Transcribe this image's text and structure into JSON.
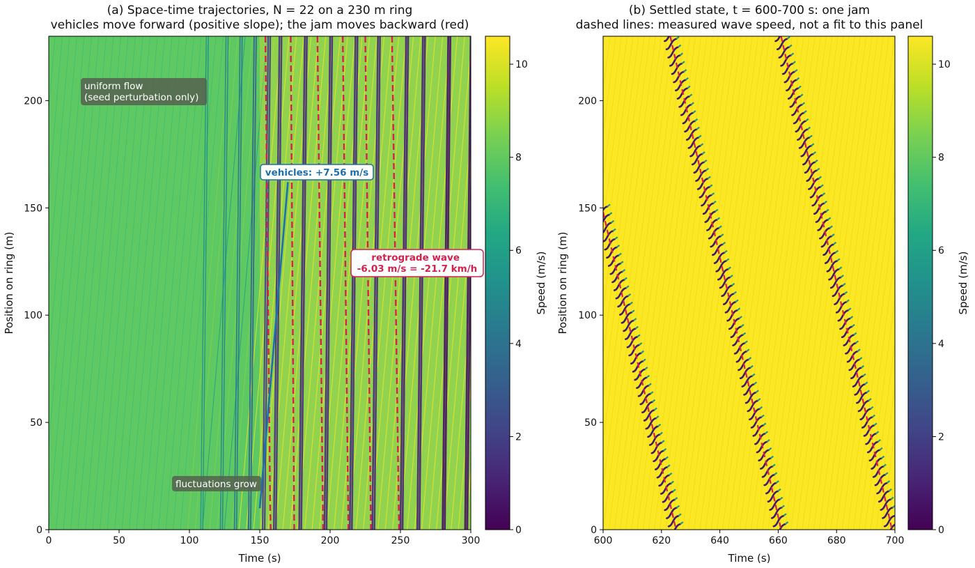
{
  "chart_data": [
    {
      "type": "scatter",
      "panel_title": "(a) Space-time trajectories, N = 22 on a 230 m ring",
      "panel_subtitle": "vehicles move forward (positive slope); the jam moves backward (red)",
      "xlabel": "Time (s)",
      "ylabel": "Position on ring (m)",
      "xlim": [
        0,
        300
      ],
      "ylim": [
        0,
        230
      ],
      "xticks": [
        "0",
        "50",
        "100",
        "150",
        "200",
        "250",
        "300"
      ],
      "yticks": [
        "0",
        "50",
        "100",
        "150",
        "200"
      ],
      "grid": false,
      "colorbar": {
        "label": "Speed (m/s)",
        "range": [
          0,
          10.6
        ],
        "ticks": [
          "0",
          "2",
          "4",
          "6",
          "8",
          "10"
        ],
        "colormap": "viridis"
      },
      "vehicles": 22,
      "ring_length_m": 230,
      "uniform_speed_mps": 7.56,
      "annotations": {
        "uniform_flow": "uniform flow\n(seed perturbation only)",
        "fluctuations": "fluctuations grow",
        "vehicle_speed": "vehicles: +7.56 m/s",
        "wave_speed": "retrograde wave\n-6.03 m/s = -21.7 km/h"
      },
      "vehicle_speed_line": {
        "x": [
          150,
          170
        ],
        "y": [
          10,
          162
        ]
      },
      "wave_speed_mps": -6.03,
      "jam_lines": [
        {
          "x": [
            154,
            155.7,
            157.4,
            157.8
          ],
          "y": [
            230,
            120,
            10,
            0
          ]
        },
        {
          "x": [
            172,
            174.5
          ],
          "y": [
            230,
            0
          ]
        },
        {
          "x": [
            191,
            195
          ],
          "y": [
            230,
            0
          ]
        },
        {
          "x": [
            209,
            213
          ],
          "y": [
            230,
            0
          ]
        },
        {
          "x": [
            225,
            229
          ],
          "y": [
            230,
            0
          ]
        },
        {
          "x": [
            244,
            249
          ],
          "y": [
            230,
            0
          ]
        }
      ]
    },
    {
      "type": "scatter",
      "panel_title": "(b) Settled state, t = 600-700 s: one jam",
      "panel_subtitle": "dashed lines: measured wave speed, not a fit to this panel",
      "xlabel": "Time (s)",
      "ylabel": "Position on ring (m)",
      "xlim": [
        600,
        700
      ],
      "ylim": [
        0,
        230
      ],
      "xticks": [
        "600",
        "620",
        "640",
        "660",
        "680",
        "700"
      ],
      "yticks": [
        "0",
        "50",
        "100",
        "150",
        "200"
      ],
      "grid": false,
      "colorbar": {
        "label": "Speed (m/s)",
        "range": [
          0,
          10.6
        ],
        "ticks": [
          "0",
          "2",
          "4",
          "6",
          "8",
          "10"
        ],
        "colormap": "viridis"
      },
      "free_flow_speed_mps": 10.5,
      "wave_speed_mps": -6.03,
      "jam_lines": [
        {
          "x": [
            600,
            625
          ],
          "y": [
            148,
            0
          ]
        },
        {
          "x": [
            623,
            661
          ],
          "y": [
            230,
            0
          ]
        },
        {
          "x": [
            661,
            699
          ],
          "y": [
            230,
            0
          ]
        }
      ]
    }
  ],
  "colors": {
    "wave": "#d6204d",
    "vehicle": "#1f6fb0",
    "label_box": "#55604f"
  }
}
